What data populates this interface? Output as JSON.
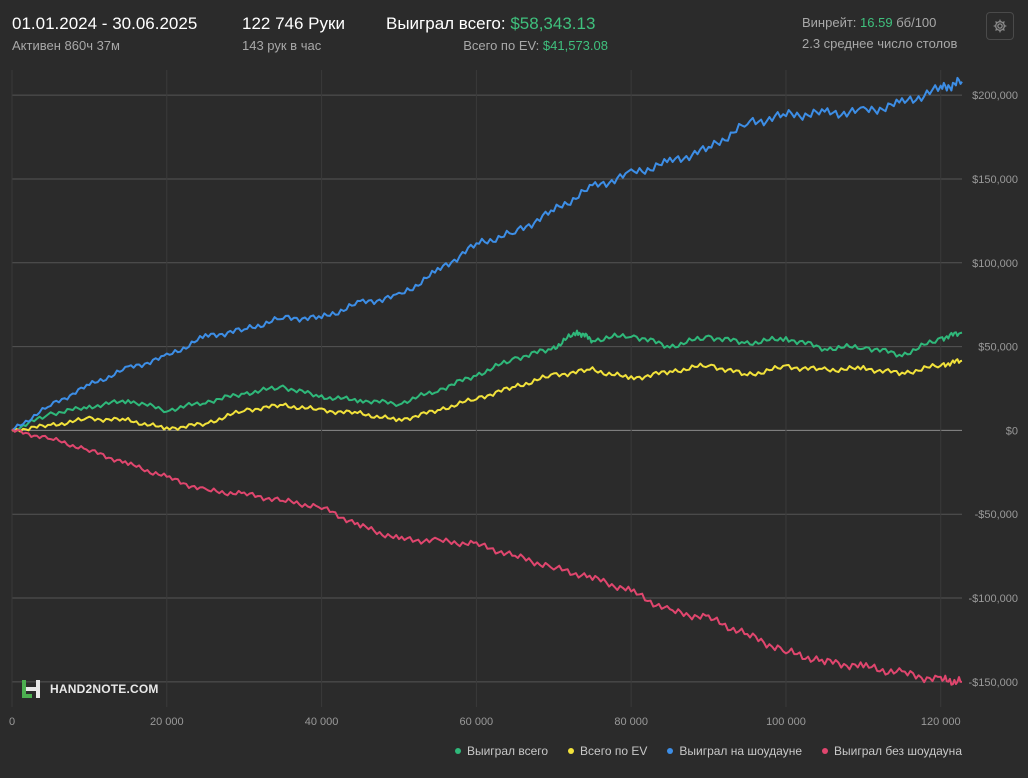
{
  "header": {
    "date_range": "01.01.2024 - 30.06.2025",
    "active": "Активен 860ч 37м",
    "hands": "122 746 Руки",
    "hands_per_hour": "143 рук в час",
    "won_total_label": "Выиграл всего:",
    "won_total_value": "$58,343.13",
    "ev_total_label": "Всего по EV:",
    "ev_total_value": "$41,573.08",
    "winrate_label": "Винрейт:",
    "winrate_value": "16.59",
    "winrate_unit": "бб/100",
    "avg_tables": "2.3 среднее число столов"
  },
  "logo": {
    "text": "HAND2NOTE.COM"
  },
  "chart_data": {
    "type": "line",
    "xlim": [
      0,
      122746
    ],
    "ylim": [
      -165000,
      215000
    ],
    "x_ticks": [
      0,
      20000,
      40000,
      60000,
      80000,
      100000,
      120000
    ],
    "x_tick_labels": [
      "0",
      "20 000",
      "40 000",
      "60 000",
      "80 000",
      "100 000",
      "120 000"
    ],
    "y_ticks": [
      200000,
      150000,
      100000,
      50000,
      0,
      -50000,
      -100000,
      -150000
    ],
    "y_tick_labels": [
      "$200,000",
      "$150,000",
      "$100,000",
      "$50,000",
      "$0",
      "-$50,000",
      "-$100,000",
      "-$150,000"
    ],
    "grid": true,
    "legend_position": "bottom-right",
    "series": [
      {
        "name": "Выиграл всего",
        "color": "#2fb87a",
        "x": [
          0,
          5000,
          10000,
          15000,
          20000,
          25000,
          30000,
          35000,
          40000,
          45000,
          50000,
          55000,
          60000,
          65000,
          70000,
          73000,
          75000,
          80000,
          85000,
          90000,
          95000,
          100000,
          105000,
          110000,
          115000,
          120000,
          122746
        ],
        "y": [
          0,
          10000,
          14000,
          18000,
          12000,
          17000,
          22000,
          26000,
          20000,
          18000,
          16000,
          24000,
          33000,
          43000,
          49000,
          59000,
          54000,
          57000,
          50000,
          56000,
          52000,
          55000,
          49000,
          50000,
          45000,
          55000,
          58343
        ]
      },
      {
        "name": "Всего по EV",
        "color": "#f2e23b",
        "x": [
          0,
          5000,
          10000,
          15000,
          20000,
          25000,
          30000,
          35000,
          40000,
          45000,
          50000,
          55000,
          60000,
          65000,
          70000,
          75000,
          80000,
          85000,
          90000,
          95000,
          100000,
          105000,
          110000,
          115000,
          120000,
          122746
        ],
        "y": [
          0,
          3000,
          7000,
          6000,
          1000,
          4000,
          12000,
          15000,
          12000,
          10000,
          6000,
          12000,
          19000,
          26000,
          33000,
          36000,
          31000,
          35000,
          39000,
          33000,
          38000,
          36000,
          37000,
          34000,
          39000,
          41573
        ]
      },
      {
        "name": "Выиграл на шоудауне",
        "color": "#3d8ee6",
        "x": [
          0,
          5000,
          10000,
          15000,
          20000,
          25000,
          30000,
          35000,
          40000,
          45000,
          50000,
          55000,
          60000,
          65000,
          70000,
          75000,
          80000,
          85000,
          90000,
          95000,
          100000,
          105000,
          110000,
          115000,
          120000,
          122746
        ],
        "y": [
          0,
          15000,
          27000,
          37000,
          44000,
          56000,
          60000,
          67000,
          67000,
          76000,
          80000,
          95000,
          111000,
          118000,
          131000,
          145000,
          153000,
          160000,
          168000,
          183000,
          188000,
          189000,
          190000,
          195000,
          204000,
          208000
        ]
      },
      {
        "name": "Выиграл без шоудауна",
        "color": "#e0466e",
        "x": [
          0,
          5000,
          10000,
          15000,
          20000,
          25000,
          30000,
          35000,
          40000,
          45000,
          50000,
          55000,
          60000,
          65000,
          70000,
          75000,
          80000,
          85000,
          90000,
          95000,
          100000,
          105000,
          110000,
          115000,
          120000,
          122746
        ],
        "y": [
          0,
          -5000,
          -12000,
          -20000,
          -28000,
          -36000,
          -38000,
          -42000,
          -46000,
          -57000,
          -65000,
          -66000,
          -68000,
          -75000,
          -82000,
          -88000,
          -96000,
          -108000,
          -112000,
          -122000,
          -132000,
          -138000,
          -141000,
          -145000,
          -149000,
          -150000
        ]
      }
    ]
  }
}
